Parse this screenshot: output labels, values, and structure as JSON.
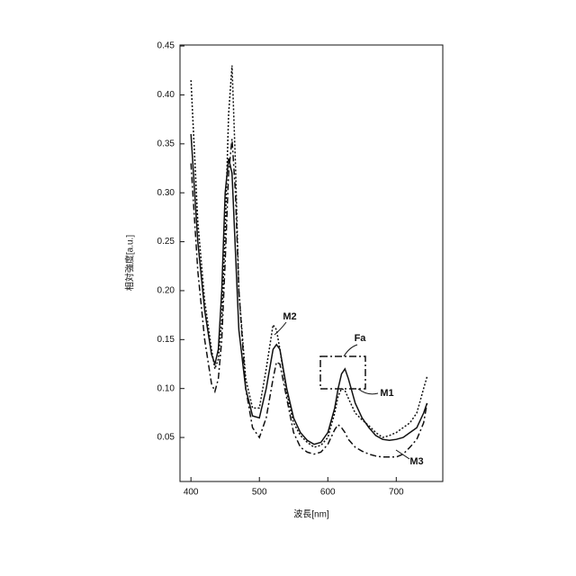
{
  "chart_data": {
    "type": "line",
    "x_label": "波長[nm]",
    "y_label": "相対強度[a.u.]",
    "x": [
      400,
      410,
      420,
      430,
      435,
      440,
      445,
      450,
      455,
      460,
      465,
      470,
      480,
      490,
      500,
      510,
      520,
      525,
      530,
      540,
      550,
      560,
      570,
      580,
      590,
      600,
      610,
      615,
      620,
      625,
      630,
      640,
      650,
      660,
      670,
      680,
      690,
      700,
      710,
      720,
      730,
      740,
      745
    ],
    "series": [
      {
        "name": "M1",
        "color": "#111111",
        "line_style": "solid",
        "values": [
          0.36,
          0.25,
          0.18,
          0.135,
          0.125,
          0.14,
          0.2,
          0.3,
          0.335,
          0.32,
          0.24,
          0.16,
          0.1,
          0.072,
          0.07,
          0.1,
          0.14,
          0.145,
          0.14,
          0.1,
          0.07,
          0.055,
          0.047,
          0.043,
          0.045,
          0.055,
          0.08,
          0.1,
          0.115,
          0.12,
          0.11,
          0.085,
          0.07,
          0.06,
          0.052,
          0.048,
          0.047,
          0.048,
          0.05,
          0.055,
          0.06,
          0.075,
          0.085
        ]
      },
      {
        "name": "M2",
        "color": "#111111",
        "line_style": "dotted",
        "values": [
          0.415,
          0.27,
          0.19,
          0.14,
          0.12,
          0.13,
          0.17,
          0.26,
          0.38,
          0.43,
          0.33,
          0.2,
          0.11,
          0.08,
          0.08,
          0.12,
          0.165,
          0.16,
          0.14,
          0.095,
          0.065,
          0.052,
          0.045,
          0.04,
          0.042,
          0.05,
          0.075,
          0.092,
          0.1,
          0.098,
          0.09,
          0.075,
          0.068,
          0.062,
          0.055,
          0.05,
          0.052,
          0.055,
          0.06,
          0.065,
          0.075,
          0.1,
          0.112
        ]
      },
      {
        "name": "M3",
        "color": "#111111",
        "line_style": "dashdot",
        "values": [
          0.33,
          0.22,
          0.15,
          0.105,
          0.097,
          0.11,
          0.15,
          0.23,
          0.32,
          0.355,
          0.3,
          0.2,
          0.1,
          0.06,
          0.05,
          0.07,
          0.11,
          0.127,
          0.125,
          0.09,
          0.055,
          0.04,
          0.035,
          0.033,
          0.035,
          0.043,
          0.058,
          0.063,
          0.06,
          0.055,
          0.048,
          0.04,
          0.036,
          0.033,
          0.031,
          0.03,
          0.03,
          0.03,
          0.033,
          0.04,
          0.048,
          0.065,
          0.085
        ]
      }
    ],
    "annotations": [
      "M2",
      "Fa",
      "M1",
      "M3"
    ],
    "xlim": [
      384,
      768
    ],
    "ylim": [
      0.005,
      0.451
    ],
    "xticks": [
      400,
      500,
      600,
      700
    ],
    "yticks": [
      0.05,
      {
        "value": 0.1,
        "label": "0.10"
      },
      0.15,
      {
        "value": 0.2,
        "label": "0.20"
      },
      0.25,
      {
        "value": 0.3,
        "label": "0.30"
      },
      0.35,
      {
        "value": 0.4,
        "label": "0.40"
      },
      0.45
    ],
    "grid": false
  }
}
